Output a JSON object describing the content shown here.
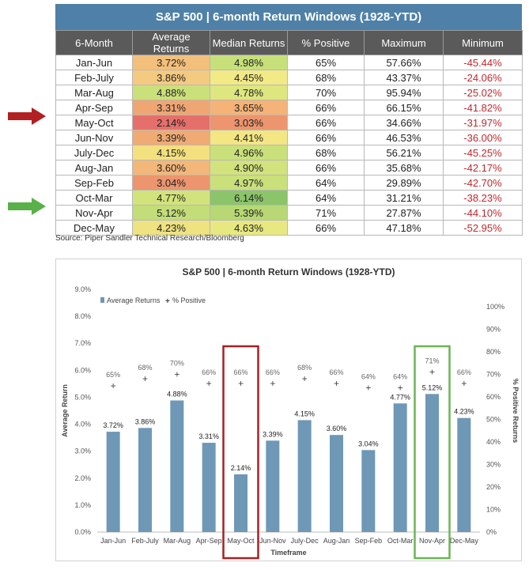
{
  "table": {
    "title": "S&P 500 | 6-month Return Windows (1928-YTD)",
    "headers": [
      "6-Month",
      "Average Returns",
      "Median Returns",
      "% Positive",
      "Maximum",
      "Minimum"
    ],
    "rows": [
      {
        "window": "Jan-Jun",
        "avg": "3.72%",
        "median": "4.98%",
        "pos": "65%",
        "max": "57.66%",
        "min": "-45.44%",
        "avg_color": "#f3c07c",
        "median_color": "#c8e07a"
      },
      {
        "window": "Feb-July",
        "avg": "3.86%",
        "median": "4.45%",
        "pos": "68%",
        "max": "43.37%",
        "min": "-24.06%",
        "avg_color": "#f4c980",
        "median_color": "#f2ea84"
      },
      {
        "window": "Mar-Aug",
        "avg": "4.88%",
        "median": "4.78%",
        "pos": "70%",
        "max": "95.94%",
        "min": "-25.02%",
        "avg_color": "#cae07b",
        "median_color": "#dde67f"
      },
      {
        "window": "Apr-Sep",
        "avg": "3.31%",
        "median": "3.65%",
        "pos": "66%",
        "max": "66.15%",
        "min": "-41.82%",
        "avg_color": "#efa673",
        "median_color": "#f5b377"
      },
      {
        "window": "May-Oct",
        "avg": "2.14%",
        "median": "3.03%",
        "pos": "66%",
        "max": "34.66%",
        "min": "-31.97%",
        "avg_color": "#e5706b",
        "median_color": "#ec956e"
      },
      {
        "window": "Jun-Nov",
        "avg": "3.39%",
        "median": "4.41%",
        "pos": "66%",
        "max": "46.53%",
        "min": "-36.00%",
        "avg_color": "#f0ab74",
        "median_color": "#f3e683"
      },
      {
        "window": "July-Dec",
        "avg": "4.15%",
        "median": "4.96%",
        "pos": "68%",
        "max": "56.21%",
        "min": "-45.25%",
        "avg_color": "#f3e07f",
        "median_color": "#cae07b"
      },
      {
        "window": "Aug-Jan",
        "avg": "3.60%",
        "median": "4.90%",
        "pos": "66%",
        "max": "35.68%",
        "min": "-42.17%",
        "avg_color": "#f2b779",
        "median_color": "#d2e27c"
      },
      {
        "window": "Sep-Feb",
        "avg": "3.04%",
        "median": "4.97%",
        "pos": "64%",
        "max": "29.89%",
        "min": "-42.70%",
        "avg_color": "#ec956e",
        "median_color": "#c9e07b"
      },
      {
        "window": "Oct-Mar",
        "avg": "4.77%",
        "median": "6.14%",
        "pos": "64%",
        "max": "31.21%",
        "min": "-38.23%",
        "avg_color": "#d3e37c",
        "median_color": "#8cc46a"
      },
      {
        "window": "Nov-Apr",
        "avg": "5.12%",
        "median": "5.39%",
        "pos": "71%",
        "max": "27.87%",
        "min": "-44.10%",
        "avg_color": "#c2dd79",
        "median_color": "#b7d874"
      },
      {
        "window": "Dec-May",
        "avg": "4.23%",
        "median": "4.63%",
        "pos": "66%",
        "max": "47.18%",
        "min": "-52.95%",
        "avg_color": "#eee281",
        "median_color": "#e8e881"
      }
    ],
    "highlight_colors": {
      "red_arrow": "#b22022",
      "green_arrow": "#5ab04a"
    }
  },
  "source": "Source: Piper Sandler Technical Research/Bloomberg",
  "chart_data": {
    "type": "bar",
    "title": "S&P 500 | 6-month Return Windows (1928-YTD)",
    "xlabel": "Timeframe",
    "ylabel": "Average Return",
    "y2label": "% Positive Returns",
    "categories": [
      "Jan-Jun",
      "Feb-July",
      "Mar-Aug",
      "Apr-Sep",
      "May-Oct",
      "Jun-Nov",
      "July-Dec",
      "Aug-Jan",
      "Sep-Feb",
      "Oct-Mar",
      "Nov-Apr",
      "Dec-May"
    ],
    "ylim": [
      0,
      9
    ],
    "y2lim": [
      0,
      100
    ],
    "yticks": [
      "0.0%",
      "1.0%",
      "2.0%",
      "3.0%",
      "4.0%",
      "5.0%",
      "6.0%",
      "7.0%",
      "8.0%",
      "9.0%"
    ],
    "y2ticks": [
      "0%",
      "10%",
      "20%",
      "30%",
      "40%",
      "50%",
      "60%",
      "70%",
      "80%",
      "90%",
      "100%"
    ],
    "legend_position": "top-left",
    "series": [
      {
        "name": "Average Returns",
        "kind": "bar",
        "axis": "left",
        "color": "#6e98b6",
        "values": [
          3.72,
          3.86,
          4.88,
          3.31,
          2.14,
          3.39,
          4.15,
          3.6,
          3.04,
          4.77,
          5.12,
          4.23
        ],
        "labels": [
          "3.72%",
          "3.86%",
          "4.88%",
          "3.31%",
          "2.14%",
          "3.39%",
          "4.15%",
          "3.60%",
          "3.04%",
          "4.77%",
          "5.12%",
          "4.23%"
        ]
      },
      {
        "name": "% Positive",
        "kind": "marker",
        "axis": "right",
        "color": "#444444",
        "values": [
          65,
          68,
          70,
          66,
          66,
          66,
          68,
          66,
          64,
          64,
          71,
          66
        ],
        "labels": [
          "65%",
          "68%",
          "70%",
          "66%",
          "66%",
          "66%",
          "68%",
          "66%",
          "64%",
          "64%",
          "71%",
          "66%"
        ]
      }
    ],
    "highlight_boxes": [
      {
        "category": "May-Oct",
        "color": "#a82024"
      },
      {
        "category": "Nov-Apr",
        "color": "#6bb556"
      }
    ],
    "grid": false
  }
}
